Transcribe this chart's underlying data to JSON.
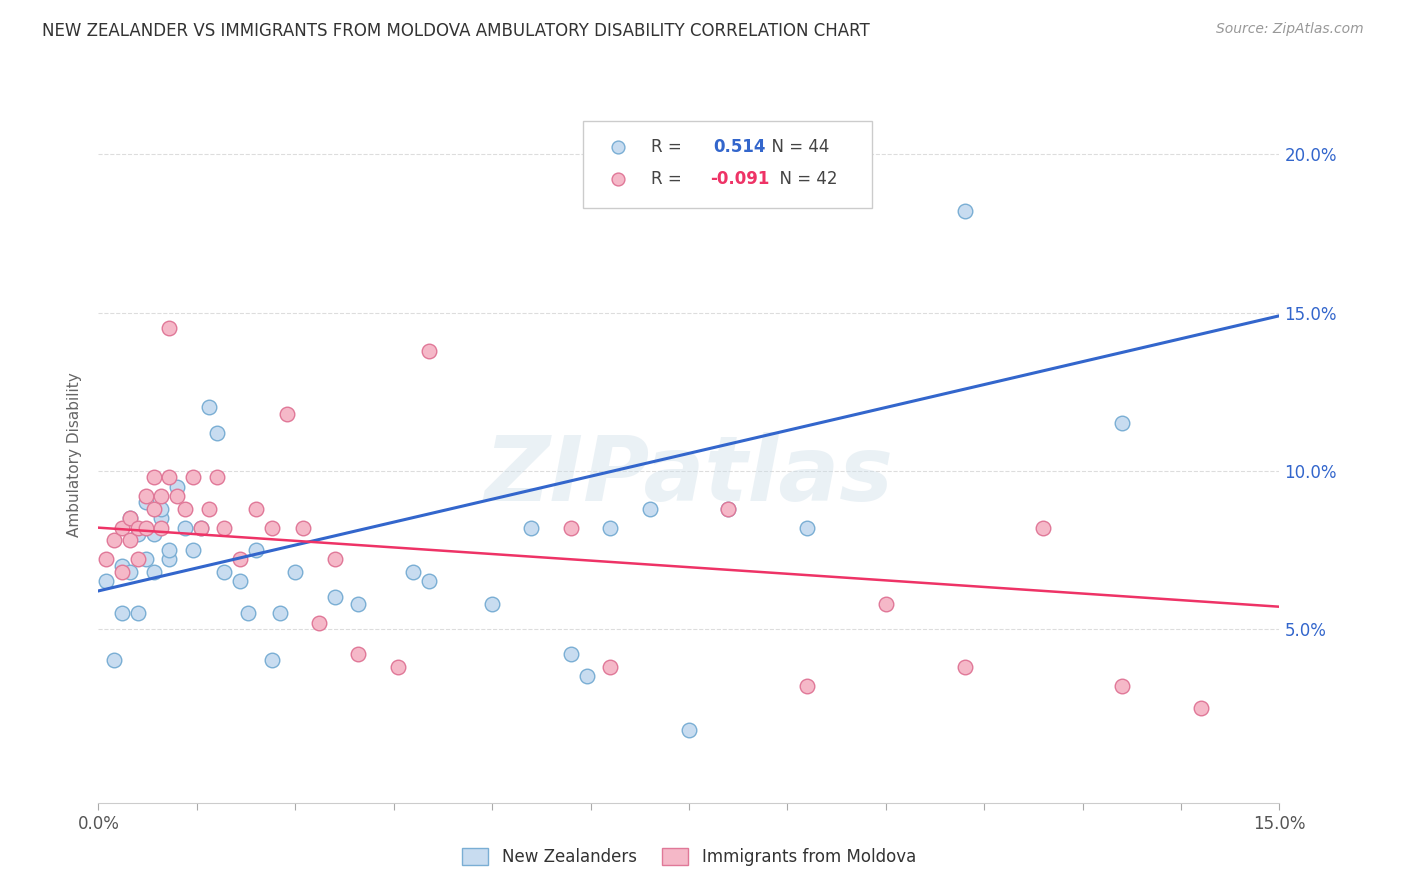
{
  "title": "NEW ZEALANDER VS IMMIGRANTS FROM MOLDOVA AMBULATORY DISABILITY CORRELATION CHART",
  "source": "Source: ZipAtlas.com",
  "ylabel": "Ambulatory Disability",
  "xmin": 0.0,
  "xmax": 0.15,
  "ymin": -0.005,
  "ymax": 0.215,
  "yticks": [
    0.05,
    0.1,
    0.15,
    0.2
  ],
  "ytick_labels": [
    "5.0%",
    "10.0%",
    "15.0%",
    "20.0%"
  ],
  "xticks": [
    0.0,
    0.0125,
    0.025,
    0.0375,
    0.05,
    0.0625,
    0.075,
    0.0875,
    0.1,
    0.1125,
    0.125,
    0.1375,
    0.15
  ],
  "blue_r": 0.514,
  "blue_n": 44,
  "pink_r": -0.091,
  "pink_n": 42,
  "blue_fill": "#c8dcf0",
  "blue_edge": "#7aaed4",
  "pink_fill": "#f5b8c8",
  "pink_edge": "#e07898",
  "blue_line": "#3366cc",
  "pink_line": "#ee3366",
  "watermark": "ZIPatlas",
  "legend_label_blue": "New Zealanders",
  "legend_label_pink": "Immigrants from Moldova",
  "blue_x": [
    0.001,
    0.002,
    0.003,
    0.003,
    0.004,
    0.004,
    0.005,
    0.005,
    0.006,
    0.006,
    0.007,
    0.007,
    0.008,
    0.008,
    0.009,
    0.009,
    0.01,
    0.011,
    0.012,
    0.013,
    0.014,
    0.015,
    0.016,
    0.018,
    0.019,
    0.02,
    0.022,
    0.023,
    0.025,
    0.03,
    0.033,
    0.04,
    0.042,
    0.05,
    0.055,
    0.06,
    0.062,
    0.065,
    0.07,
    0.075,
    0.08,
    0.09,
    0.11,
    0.13
  ],
  "blue_y": [
    0.065,
    0.04,
    0.07,
    0.055,
    0.085,
    0.068,
    0.08,
    0.055,
    0.09,
    0.072,
    0.08,
    0.068,
    0.085,
    0.088,
    0.072,
    0.075,
    0.095,
    0.082,
    0.075,
    0.082,
    0.12,
    0.112,
    0.068,
    0.065,
    0.055,
    0.075,
    0.04,
    0.055,
    0.068,
    0.06,
    0.058,
    0.068,
    0.065,
    0.058,
    0.082,
    0.042,
    0.035,
    0.082,
    0.088,
    0.018,
    0.088,
    0.082,
    0.182,
    0.115
  ],
  "pink_x": [
    0.001,
    0.002,
    0.003,
    0.003,
    0.004,
    0.004,
    0.005,
    0.005,
    0.006,
    0.006,
    0.007,
    0.007,
    0.008,
    0.008,
    0.009,
    0.009,
    0.01,
    0.011,
    0.012,
    0.013,
    0.014,
    0.015,
    0.016,
    0.018,
    0.02,
    0.022,
    0.024,
    0.026,
    0.028,
    0.03,
    0.033,
    0.038,
    0.042,
    0.06,
    0.065,
    0.08,
    0.09,
    0.1,
    0.11,
    0.12,
    0.13,
    0.14
  ],
  "pink_y": [
    0.072,
    0.078,
    0.082,
    0.068,
    0.085,
    0.078,
    0.082,
    0.072,
    0.092,
    0.082,
    0.098,
    0.088,
    0.092,
    0.082,
    0.145,
    0.098,
    0.092,
    0.088,
    0.098,
    0.082,
    0.088,
    0.098,
    0.082,
    0.072,
    0.088,
    0.082,
    0.118,
    0.082,
    0.052,
    0.072,
    0.042,
    0.038,
    0.138,
    0.082,
    0.038,
    0.088,
    0.032,
    0.058,
    0.038,
    0.082,
    0.032,
    0.025
  ],
  "blue_trend_start": 0.062,
  "blue_trend_end": 0.149,
  "pink_trend_start": 0.082,
  "pink_trend_end": 0.057
}
